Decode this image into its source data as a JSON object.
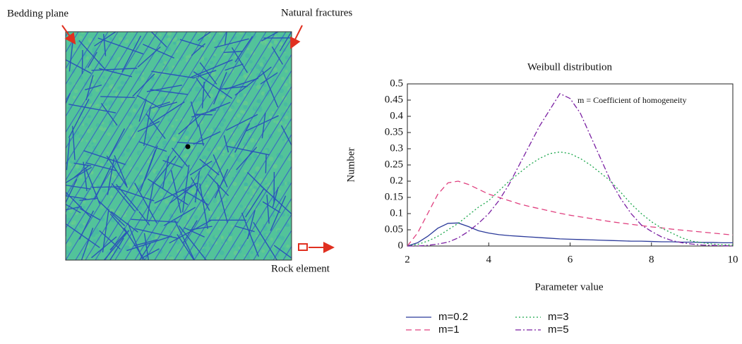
{
  "figure": {
    "labels": [
      "Bedding plane",
      "Natural fractures",
      "Rock element"
    ]
  },
  "chart_data": {
    "type": "line",
    "title": "Weibull distribution",
    "x_label": "Parameter value",
    "y_label": "Number",
    "annotation": "m = Coefficient of homogeneity",
    "x": [
      2,
      2.25,
      2.5,
      2.75,
      3,
      3.25,
      3.5,
      3.75,
      4,
      4.25,
      4.5,
      4.75,
      5,
      5.25,
      5.5,
      5.75,
      6,
      6.25,
      6.5,
      6.75,
      7,
      7.25,
      7.5,
      7.75,
      8,
      8.25,
      8.5,
      8.75,
      9,
      9.25,
      9.5,
      9.75,
      10
    ],
    "series": [
      {
        "name": "m=0.2",
        "color": "#2b3a9a",
        "dash": "",
        "values": [
          0,
          0.01,
          0.03,
          0.055,
          0.07,
          0.071,
          0.06,
          0.047,
          0.04,
          0.035,
          0.032,
          0.03,
          0.028,
          0.026,
          0.024,
          0.022,
          0.021,
          0.02,
          0.019,
          0.018,
          0.017,
          0.016,
          0.015,
          0.015,
          0.014,
          0.013,
          0.013,
          0.012,
          0.012,
          0.011,
          0.011,
          0.01,
          0.01
        ]
      },
      {
        "name": "m=1",
        "color": "#e0407f",
        "dash": "8,5",
        "values": [
          0,
          0.04,
          0.1,
          0.16,
          0.195,
          0.2,
          0.19,
          0.175,
          0.16,
          0.15,
          0.14,
          0.13,
          0.122,
          0.115,
          0.108,
          0.101,
          0.095,
          0.09,
          0.085,
          0.08,
          0.075,
          0.071,
          0.067,
          0.063,
          0.059,
          0.056,
          0.052,
          0.049,
          0.046,
          0.043,
          0.04,
          0.037,
          0.034
        ]
      },
      {
        "name": "m=3",
        "color": "#1aa64a",
        "dash": "2,3",
        "values": [
          0,
          0.005,
          0.015,
          0.03,
          0.05,
          0.07,
          0.095,
          0.12,
          0.14,
          0.17,
          0.2,
          0.225,
          0.25,
          0.27,
          0.285,
          0.29,
          0.285,
          0.27,
          0.25,
          0.225,
          0.2,
          0.165,
          0.13,
          0.1,
          0.075,
          0.055,
          0.04,
          0.025,
          0.015,
          0.01,
          0.006,
          0.004,
          0.003
        ]
      },
      {
        "name": "m=5",
        "color": "#7a1fa2",
        "dash": "8,3,2,3",
        "values": [
          0,
          0,
          0.002,
          0.006,
          0.012,
          0.025,
          0.045,
          0.07,
          0.1,
          0.14,
          0.19,
          0.25,
          0.31,
          0.37,
          0.42,
          0.47,
          0.455,
          0.41,
          0.34,
          0.27,
          0.2,
          0.145,
          0.1,
          0.065,
          0.045,
          0.028,
          0.017,
          0.01,
          0.006,
          0.003,
          0.002,
          0.001,
          0
        ]
      }
    ],
    "xlim": [
      2,
      10
    ],
    "xticks": [
      2,
      4,
      6,
      8,
      10
    ],
    "ylim": [
      0,
      0.5
    ],
    "yticks": [
      0,
      0.05,
      0.1,
      0.15,
      0.2,
      0.25,
      0.3,
      0.35,
      0.4,
      0.45,
      0.5
    ]
  }
}
